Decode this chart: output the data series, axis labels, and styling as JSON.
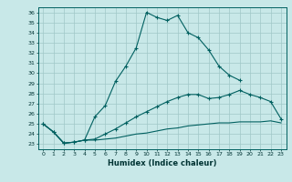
{
  "xlabel": "Humidex (Indice chaleur)",
  "xlim": [
    -0.5,
    23.5
  ],
  "ylim": [
    22.5,
    36.5
  ],
  "bg_color": "#c8e8e8",
  "grid_color": "#a0c8c8",
  "line_color": "#006060",
  "line1_x": [
    0,
    1,
    2,
    3,
    4,
    5,
    6,
    7,
    8,
    9,
    10,
    11,
    12,
    13,
    14,
    15,
    16,
    17,
    18,
    19
  ],
  "line1_y": [
    25.0,
    24.2,
    23.1,
    23.2,
    23.4,
    25.7,
    26.8,
    29.2,
    30.7,
    32.5,
    36.0,
    35.5,
    35.2,
    35.7,
    34.0,
    33.5,
    32.3,
    30.7,
    29.8,
    29.3
  ],
  "line2_x": [
    0,
    1,
    2,
    3,
    4,
    5,
    6,
    7,
    8,
    9,
    10,
    11,
    12,
    13,
    14,
    15,
    16,
    17,
    18,
    19,
    20,
    21,
    22,
    23
  ],
  "line2_y": [
    25.0,
    24.2,
    23.1,
    23.2,
    23.4,
    23.5,
    24.0,
    24.5,
    25.1,
    25.7,
    26.2,
    26.7,
    27.2,
    27.6,
    27.9,
    27.9,
    27.5,
    27.6,
    27.9,
    28.3,
    27.9,
    27.6,
    27.2,
    25.5
  ],
  "line3_x": [
    0,
    1,
    2,
    3,
    4,
    5,
    6,
    7,
    8,
    9,
    10,
    11,
    12,
    13,
    14,
    15,
    16,
    17,
    18,
    19,
    20,
    21,
    22,
    23
  ],
  "line3_y": [
    25.0,
    24.2,
    23.1,
    23.2,
    23.4,
    23.4,
    23.5,
    23.6,
    23.8,
    24.0,
    24.1,
    24.3,
    24.5,
    24.6,
    24.8,
    24.9,
    25.0,
    25.1,
    25.1,
    25.2,
    25.2,
    25.2,
    25.3,
    25.1
  ]
}
